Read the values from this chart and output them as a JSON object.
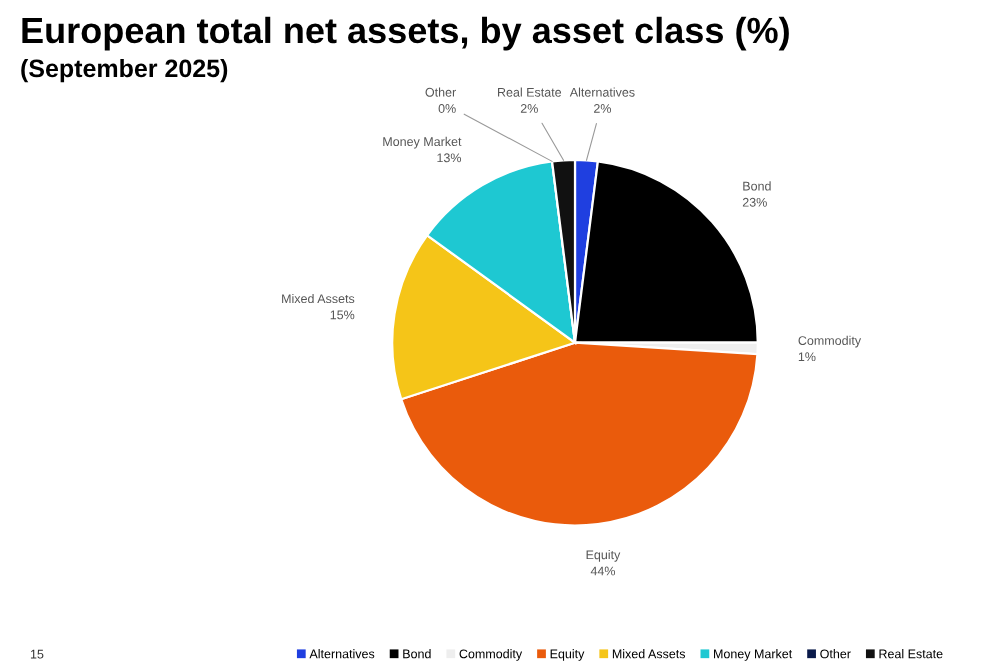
{
  "chart_data": {
    "type": "pie",
    "title": "European total net assets, by asset class (%)",
    "subtitle": "(September 2025)",
    "categories": [
      "Alternatives",
      "Bond",
      "Commodity",
      "Equity",
      "Mixed Assets",
      "Money Market",
      "Other",
      "Real Estate"
    ],
    "values": [
      2,
      23,
      1,
      44,
      15,
      13,
      0,
      2
    ],
    "colors": [
      "#1f3fe0",
      "#000000",
      "#eeeeee",
      "#ea5b0c",
      "#f5c518",
      "#1ec8d2",
      "#0a1a4a",
      "#111111"
    ],
    "value_labels": [
      "2%",
      "23%",
      "1%",
      "44%",
      "15%",
      "13%",
      "0%",
      "2%"
    ],
    "annotations": [
      "15"
    ],
    "legend": "bottom"
  }
}
